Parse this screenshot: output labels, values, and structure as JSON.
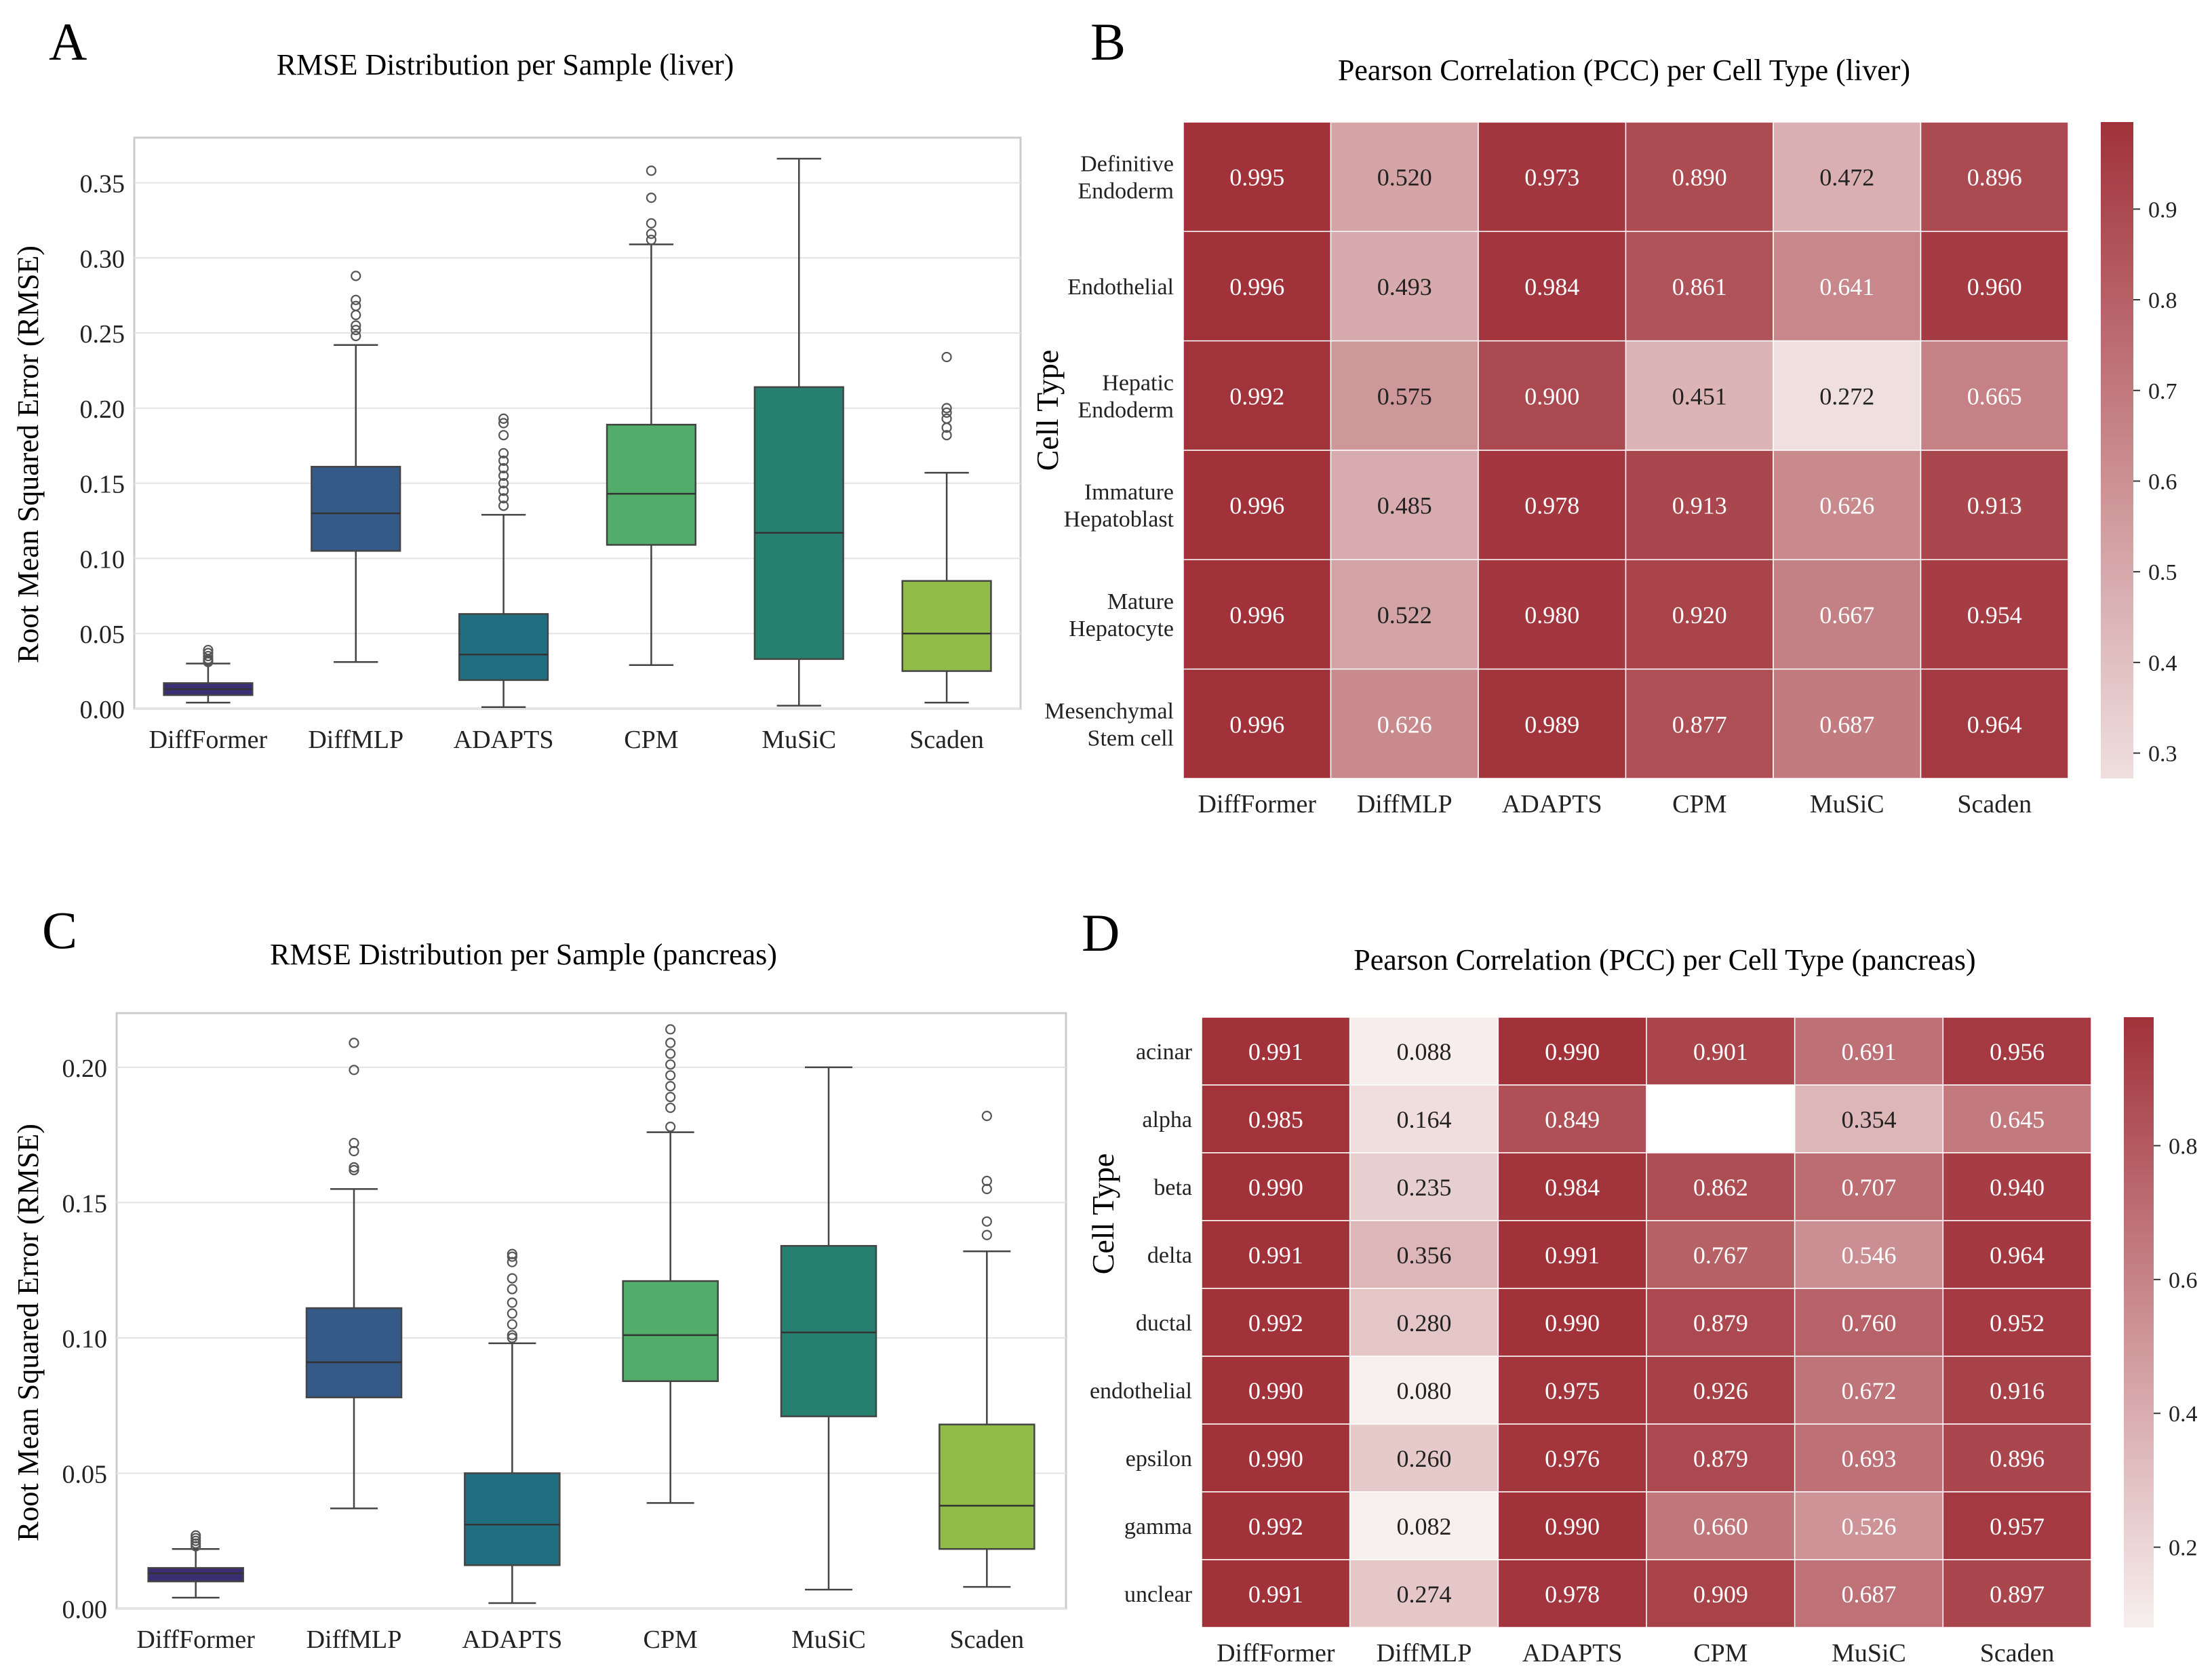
{
  "chart_data": [
    {
      "panel": "A",
      "type": "box",
      "title": "RMSE Distribution per Sample (liver)",
      "xlabel": "",
      "ylabel": "Root Mean Squared Error (RMSE)",
      "ylim": [
        0,
        0.38
      ],
      "yticks": [
        0.0,
        0.05,
        0.1,
        0.15,
        0.2,
        0.25,
        0.3,
        0.35
      ],
      "yticklabels": [
        "0.00",
        "0.05",
        "0.10",
        "0.15",
        "0.20",
        "0.25",
        "0.30",
        "0.35"
      ],
      "grid": true,
      "categories": [
        "DiffFormer",
        "DiffMLP",
        "ADAPTS",
        "CPM",
        "MuSiC",
        "Scaden"
      ],
      "colors": [
        "#3b2f73",
        "#365a87",
        "#216e80",
        "#52ad6a",
        "#27806f",
        "#91bc4a"
      ],
      "boxes": [
        {
          "min": 0.004,
          "q1": 0.009,
          "median": 0.013,
          "q3": 0.017,
          "max": 0.03,
          "outliers": [
            0.031,
            0.032,
            0.033,
            0.035,
            0.037,
            0.039
          ]
        },
        {
          "min": 0.031,
          "q1": 0.105,
          "median": 0.13,
          "q3": 0.161,
          "max": 0.242,
          "outliers": [
            0.248,
            0.252,
            0.255,
            0.262,
            0.268,
            0.272,
            0.288
          ]
        },
        {
          "min": 0.001,
          "q1": 0.019,
          "median": 0.036,
          "q3": 0.063,
          "max": 0.129,
          "outliers": [
            0.135,
            0.14,
            0.145,
            0.15,
            0.155,
            0.16,
            0.165,
            0.17,
            0.182,
            0.19,
            0.193
          ]
        },
        {
          "min": 0.029,
          "q1": 0.109,
          "median": 0.143,
          "q3": 0.189,
          "max": 0.309,
          "outliers": [
            0.312,
            0.316,
            0.323,
            0.34,
            0.358
          ]
        },
        {
          "min": 0.002,
          "q1": 0.033,
          "median": 0.117,
          "q3": 0.214,
          "max": 0.366,
          "outliers": []
        },
        {
          "min": 0.004,
          "q1": 0.025,
          "median": 0.05,
          "q3": 0.085,
          "max": 0.157,
          "outliers": [
            0.182,
            0.187,
            0.193,
            0.197,
            0.2,
            0.234
          ]
        }
      ]
    },
    {
      "panel": "B",
      "type": "heatmap",
      "title": "Pearson Correlation (PCC) per Cell Type (liver)",
      "ylabel": "Cell Type",
      "columns": [
        "DiffFormer",
        "DiffMLP",
        "ADAPTS",
        "CPM",
        "MuSiC",
        "Scaden"
      ],
      "rows": [
        [
          "Definitive",
          "Endoderm"
        ],
        [
          "Endothelial"
        ],
        [
          "Hepatic",
          "Endoderm"
        ],
        [
          "Immature",
          "Hepatoblast"
        ],
        [
          "Mature",
          "Hepatocyte"
        ],
        [
          "Mesenchymal",
          "Stem cell"
        ]
      ],
      "values": [
        [
          0.995,
          0.52,
          0.973,
          0.89,
          0.472,
          0.896
        ],
        [
          0.996,
          0.493,
          0.984,
          0.861,
          0.641,
          0.96
        ],
        [
          0.992,
          0.575,
          0.9,
          0.451,
          0.272,
          0.665
        ],
        [
          0.996,
          0.485,
          0.978,
          0.913,
          0.626,
          0.913
        ],
        [
          0.996,
          0.522,
          0.98,
          0.92,
          0.667,
          0.954
        ],
        [
          0.996,
          0.626,
          0.989,
          0.877,
          0.687,
          0.964
        ]
      ],
      "colorbar": {
        "vmin": 0.272,
        "vmax": 0.996,
        "ticks": [
          0.3,
          0.4,
          0.5,
          0.6,
          0.7,
          0.8,
          0.9
        ],
        "ticklabels": [
          "0.3",
          "0.4",
          "0.5",
          "0.6",
          "0.7",
          "0.8",
          "0.9"
        ]
      },
      "cmap": [
        "#efdfdf",
        "#a1323a"
      ]
    },
    {
      "panel": "C",
      "type": "box",
      "title": "RMSE Distribution per Sample (pancreas)",
      "xlabel": "",
      "ylabel": "Root Mean Squared Error (RMSE)",
      "ylim": [
        0,
        0.22
      ],
      "yticks": [
        0.0,
        0.05,
        0.1,
        0.15,
        0.2
      ],
      "yticklabels": [
        "0.00",
        "0.05",
        "0.10",
        "0.15",
        "0.20"
      ],
      "grid": true,
      "categories": [
        "DiffFormer",
        "DiffMLP",
        "ADAPTS",
        "CPM",
        "MuSiC",
        "Scaden"
      ],
      "colors": [
        "#3b2f73",
        "#365a87",
        "#216e80",
        "#52ad6a",
        "#27806f",
        "#91bc4a"
      ],
      "boxes": [
        {
          "min": 0.004,
          "q1": 0.01,
          "median": 0.013,
          "q3": 0.015,
          "max": 0.022,
          "outliers": [
            0.023,
            0.024,
            0.025,
            0.026,
            0.027
          ]
        },
        {
          "min": 0.037,
          "q1": 0.078,
          "median": 0.091,
          "q3": 0.111,
          "max": 0.155,
          "outliers": [
            0.162,
            0.163,
            0.169,
            0.172,
            0.199,
            0.209
          ]
        },
        {
          "min": 0.002,
          "q1": 0.016,
          "median": 0.031,
          "q3": 0.05,
          "max": 0.098,
          "outliers": [
            0.1,
            0.101,
            0.105,
            0.109,
            0.113,
            0.118,
            0.122,
            0.128,
            0.13,
            0.131
          ]
        },
        {
          "min": 0.039,
          "q1": 0.084,
          "median": 0.101,
          "q3": 0.121,
          "max": 0.176,
          "outliers": [
            0.178,
            0.185,
            0.189,
            0.193,
            0.197,
            0.201,
            0.205,
            0.209,
            0.214
          ]
        },
        {
          "min": 0.007,
          "q1": 0.071,
          "median": 0.102,
          "q3": 0.134,
          "max": 0.2,
          "outliers": []
        },
        {
          "min": 0.008,
          "q1": 0.022,
          "median": 0.038,
          "q3": 0.068,
          "max": 0.132,
          "outliers": [
            0.138,
            0.143,
            0.155,
            0.158,
            0.182
          ]
        }
      ]
    },
    {
      "panel": "D",
      "type": "heatmap",
      "title": "Pearson Correlation (PCC) per Cell Type (pancreas)",
      "ylabel": "Cell Type",
      "columns": [
        "DiffFormer",
        "DiffMLP",
        "ADAPTS",
        "CPM",
        "MuSiC",
        "Scaden"
      ],
      "rows": [
        [
          "acinar"
        ],
        [
          "alpha"
        ],
        [
          "beta"
        ],
        [
          "delta"
        ],
        [
          "ductal"
        ],
        [
          "endothelial"
        ],
        [
          "epsilon"
        ],
        [
          "gamma"
        ],
        [
          "unclear"
        ]
      ],
      "values": [
        [
          0.991,
          0.088,
          0.99,
          0.901,
          0.691,
          0.956
        ],
        [
          0.985,
          0.164,
          0.849,
          null,
          0.354,
          0.645
        ],
        [
          0.99,
          0.235,
          0.984,
          0.862,
          0.707,
          0.94
        ],
        [
          0.991,
          0.356,
          0.991,
          0.767,
          0.546,
          0.964
        ],
        [
          0.992,
          0.28,
          0.99,
          0.879,
          0.76,
          0.952
        ],
        [
          0.99,
          0.08,
          0.975,
          0.926,
          0.672,
          0.916
        ],
        [
          0.99,
          0.26,
          0.976,
          0.879,
          0.693,
          0.896
        ],
        [
          0.992,
          0.082,
          0.99,
          0.66,
          0.526,
          0.957
        ],
        [
          0.991,
          0.274,
          0.978,
          0.909,
          0.687,
          0.897
        ]
      ],
      "colorbar": {
        "vmin": 0.08,
        "vmax": 0.992,
        "ticks": [
          0.2,
          0.4,
          0.6,
          0.8
        ],
        "ticklabels": [
          "0.2",
          "0.4",
          "0.6",
          "0.8"
        ]
      },
      "cmap": [
        "#f7efee",
        "#a1323a"
      ]
    }
  ],
  "panel_labels": [
    "A",
    "B",
    "C",
    "D"
  ]
}
